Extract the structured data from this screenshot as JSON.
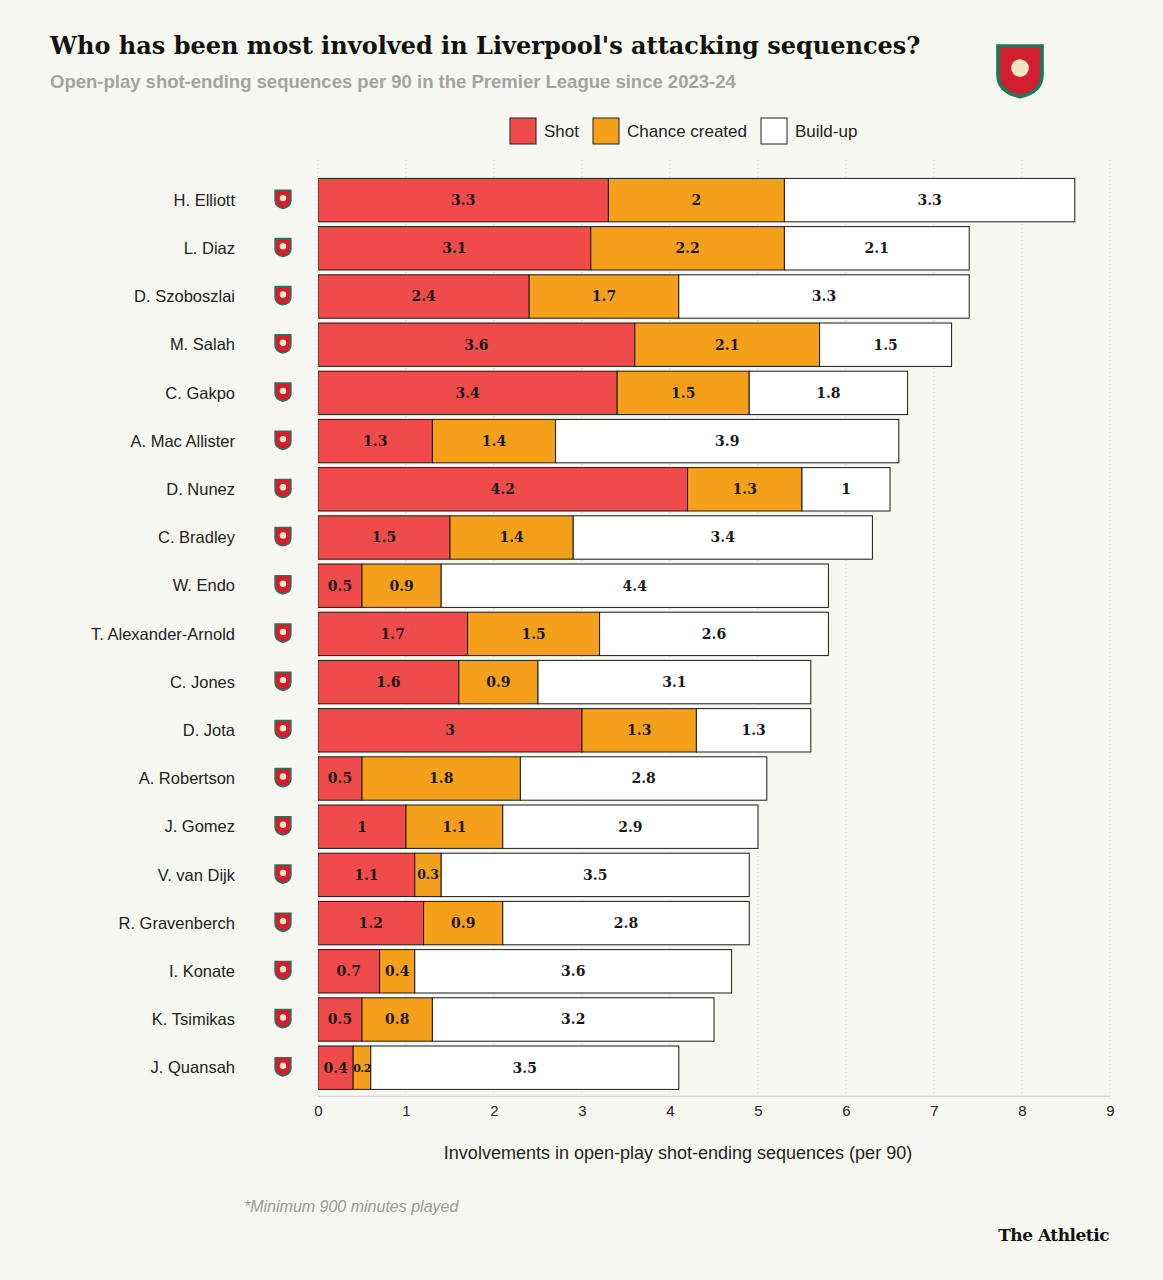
{
  "chart_data": {
    "type": "bar",
    "orientation": "horizontal",
    "stacked": true,
    "data_labels": true,
    "grid": true,
    "legend": "top",
    "title": "Who has been most involved in Liverpool's attacking sequences?",
    "subtitle": "Open-play shot-ending sequences per 90 in the Premier League since 2023-24",
    "xlabel": "Involvements in open-play shot-ending sequences (per 90)",
    "note": "*Minimum 900 minutes played",
    "source": "The Athletic",
    "categories": [
      "H. Elliott",
      "L. Diaz",
      "D. Szoboszlai",
      "M. Salah",
      "C. Gakpo",
      "A. Mac Allister",
      "D. Nunez",
      "C. Bradley",
      "W. Endo",
      "T. Alexander-Arnold",
      "C. Jones",
      "D. Jota",
      "A. Robertson",
      "J. Gomez",
      "V. van Dijk",
      "R. Gravenberch",
      "I. Konate",
      "K. Tsimikas",
      "J. Quansah"
    ],
    "series": [
      {
        "name": "Shot",
        "color": "#ef4b4b",
        "values": [
          3.3,
          3.1,
          2.4,
          3.6,
          3.4,
          1.3,
          4.2,
          1.5,
          0.5,
          1.7,
          1.6,
          3,
          0.5,
          1,
          1.1,
          1.2,
          0.7,
          0.5,
          0.4
        ]
      },
      {
        "name": "Chance created",
        "color": "#f5a01b",
        "values": [
          2,
          2.2,
          1.7,
          2.1,
          1.5,
          1.4,
          1.3,
          1.4,
          0.9,
          1.5,
          0.9,
          1.3,
          1.8,
          1.1,
          0.3,
          0.9,
          0.4,
          0.8,
          0.2
        ]
      },
      {
        "name": "Build-up",
        "color": "#ffffff",
        "values": [
          3.3,
          2.1,
          3.3,
          1.5,
          1.8,
          3.9,
          1,
          3.4,
          4.4,
          2.6,
          3.1,
          1.3,
          2.8,
          2.9,
          3.5,
          2.8,
          3.6,
          3.2,
          3.5
        ]
      }
    ],
    "xlim": [
      0,
      9
    ],
    "xticks": [
      0,
      1,
      2,
      3,
      4,
      5,
      6,
      7,
      8,
      9
    ]
  }
}
